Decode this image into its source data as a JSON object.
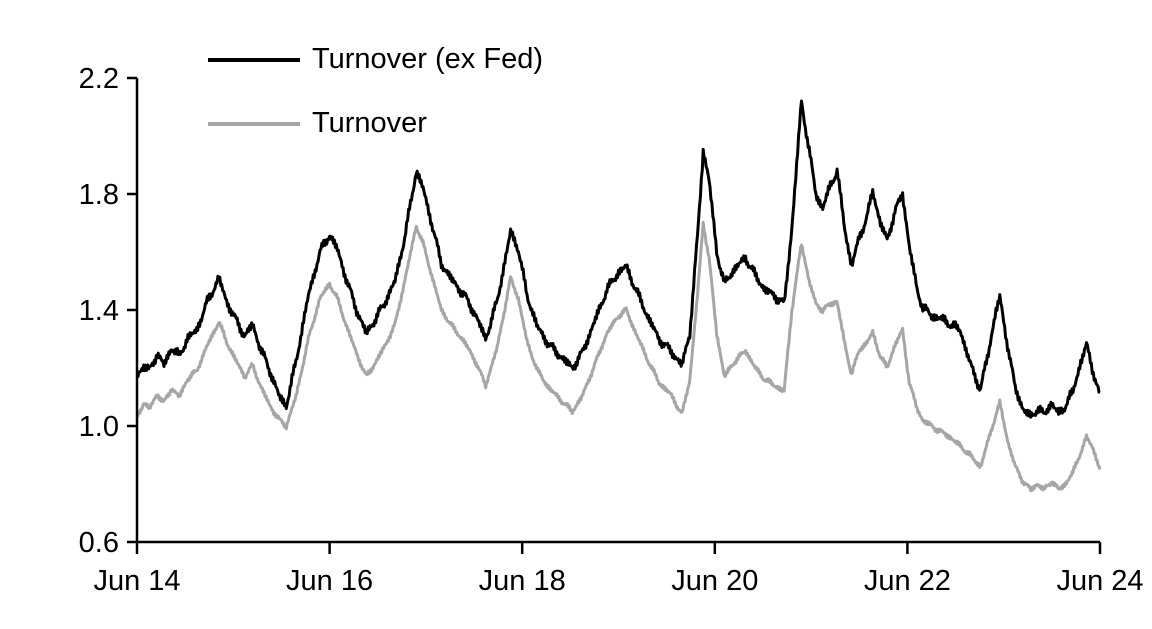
{
  "chart_data": {
    "type": "line",
    "title": "",
    "xlabel": "",
    "ylabel": "",
    "grid": false,
    "background": "#ffffff",
    "axis_color": "#000000",
    "legend": {
      "position": "top-left"
    },
    "x_axis": {
      "tick_labels": [
        "Jun 14",
        "Jun 16",
        "Jun 18",
        "Jun 20",
        "Jun 22",
        "Jun 24"
      ],
      "tick_positions_years": [
        0,
        2,
        4,
        6,
        8,
        10
      ],
      "range_years": [
        0,
        10
      ]
    },
    "y_axis": {
      "ticks": [
        0.6,
        1.0,
        1.4,
        1.8,
        2.2
      ],
      "range": [
        0.6,
        2.2
      ],
      "decimals": 1
    },
    "series": [
      {
        "name": "Turnover (ex Fed)",
        "color": "#000000",
        "line_width": 3,
        "noise_hint": 0.021,
        "points": [
          [
            0.0,
            1.17
          ],
          [
            0.07,
            1.21
          ],
          [
            0.13,
            1.19
          ],
          [
            0.21,
            1.25
          ],
          [
            0.28,
            1.21
          ],
          [
            0.36,
            1.27
          ],
          [
            0.44,
            1.24
          ],
          [
            0.52,
            1.3
          ],
          [
            0.62,
            1.33
          ],
          [
            0.72,
            1.42
          ],
          [
            0.85,
            1.51
          ],
          [
            0.93,
            1.43
          ],
          [
            1.02,
            1.37
          ],
          [
            1.12,
            1.31
          ],
          [
            1.2,
            1.35
          ],
          [
            1.28,
            1.27
          ],
          [
            1.38,
            1.19
          ],
          [
            1.48,
            1.1
          ],
          [
            1.55,
            1.07
          ],
          [
            1.65,
            1.22
          ],
          [
            1.78,
            1.45
          ],
          [
            1.9,
            1.6
          ],
          [
            2.0,
            1.66
          ],
          [
            2.08,
            1.61
          ],
          [
            2.17,
            1.51
          ],
          [
            2.28,
            1.4
          ],
          [
            2.38,
            1.32
          ],
          [
            2.48,
            1.37
          ],
          [
            2.58,
            1.43
          ],
          [
            2.68,
            1.5
          ],
          [
            2.78,
            1.65
          ],
          [
            2.9,
            1.88
          ],
          [
            2.97,
            1.82
          ],
          [
            3.06,
            1.7
          ],
          [
            3.16,
            1.56
          ],
          [
            3.28,
            1.5
          ],
          [
            3.4,
            1.45
          ],
          [
            3.52,
            1.38
          ],
          [
            3.62,
            1.3
          ],
          [
            3.74,
            1.43
          ],
          [
            3.88,
            1.67
          ],
          [
            3.96,
            1.61
          ],
          [
            4.05,
            1.45
          ],
          [
            4.16,
            1.34
          ],
          [
            4.28,
            1.28
          ],
          [
            4.4,
            1.24
          ],
          [
            4.52,
            1.2
          ],
          [
            4.62,
            1.25
          ],
          [
            4.74,
            1.35
          ],
          [
            4.88,
            1.47
          ],
          [
            5.0,
            1.53
          ],
          [
            5.08,
            1.55
          ],
          [
            5.18,
            1.47
          ],
          [
            5.3,
            1.38
          ],
          [
            5.42,
            1.3
          ],
          [
            5.54,
            1.26
          ],
          [
            5.66,
            1.21
          ],
          [
            5.74,
            1.32
          ],
          [
            5.82,
            1.65
          ],
          [
            5.88,
            1.95
          ],
          [
            5.94,
            1.85
          ],
          [
            6.02,
            1.6
          ],
          [
            6.1,
            1.49
          ],
          [
            6.2,
            1.54
          ],
          [
            6.32,
            1.58
          ],
          [
            6.42,
            1.52
          ],
          [
            6.52,
            1.47
          ],
          [
            6.62,
            1.45
          ],
          [
            6.72,
            1.42
          ],
          [
            6.8,
            1.68
          ],
          [
            6.9,
            2.12
          ],
          [
            6.98,
            1.95
          ],
          [
            7.05,
            1.8
          ],
          [
            7.12,
            1.75
          ],
          [
            7.2,
            1.83
          ],
          [
            7.27,
            1.88
          ],
          [
            7.35,
            1.68
          ],
          [
            7.42,
            1.55
          ],
          [
            7.5,
            1.65
          ],
          [
            7.58,
            1.72
          ],
          [
            7.64,
            1.81
          ],
          [
            7.72,
            1.7
          ],
          [
            7.79,
            1.64
          ],
          [
            7.87,
            1.74
          ],
          [
            7.95,
            1.8
          ],
          [
            8.02,
            1.62
          ],
          [
            8.1,
            1.47
          ],
          [
            8.16,
            1.41
          ],
          [
            8.25,
            1.38
          ],
          [
            8.35,
            1.37
          ],
          [
            8.45,
            1.35
          ],
          [
            8.55,
            1.33
          ],
          [
            8.62,
            1.25
          ],
          [
            8.7,
            1.17
          ],
          [
            8.76,
            1.13
          ],
          [
            8.84,
            1.25
          ],
          [
            8.92,
            1.4
          ],
          [
            8.96,
            1.44
          ],
          [
            9.04,
            1.28
          ],
          [
            9.12,
            1.13
          ],
          [
            9.2,
            1.06
          ],
          [
            9.28,
            1.03
          ],
          [
            9.35,
            1.06
          ],
          [
            9.42,
            1.04
          ],
          [
            9.5,
            1.08
          ],
          [
            9.57,
            1.04
          ],
          [
            9.64,
            1.07
          ],
          [
            9.72,
            1.12
          ],
          [
            9.8,
            1.22
          ],
          [
            9.86,
            1.28
          ],
          [
            9.92,
            1.2
          ],
          [
            10.0,
            1.1
          ]
        ]
      },
      {
        "name": "Turnover",
        "color": "#a6a6a6",
        "line_width": 3,
        "noise_hint": 0.012,
        "points": [
          [
            0.0,
            1.03
          ],
          [
            0.07,
            1.08
          ],
          [
            0.13,
            1.06
          ],
          [
            0.21,
            1.11
          ],
          [
            0.28,
            1.08
          ],
          [
            0.36,
            1.13
          ],
          [
            0.44,
            1.1
          ],
          [
            0.52,
            1.16
          ],
          [
            0.62,
            1.19
          ],
          [
            0.72,
            1.27
          ],
          [
            0.85,
            1.36
          ],
          [
            0.93,
            1.29
          ],
          [
            1.02,
            1.23
          ],
          [
            1.12,
            1.17
          ],
          [
            1.2,
            1.21
          ],
          [
            1.28,
            1.14
          ],
          [
            1.38,
            1.07
          ],
          [
            1.48,
            1.02
          ],
          [
            1.55,
            1.0
          ],
          [
            1.65,
            1.1
          ],
          [
            1.78,
            1.3
          ],
          [
            1.9,
            1.44
          ],
          [
            2.0,
            1.49
          ],
          [
            2.08,
            1.44
          ],
          [
            2.17,
            1.35
          ],
          [
            2.28,
            1.25
          ],
          [
            2.38,
            1.17
          ],
          [
            2.48,
            1.22
          ],
          [
            2.58,
            1.28
          ],
          [
            2.68,
            1.35
          ],
          [
            2.78,
            1.5
          ],
          [
            2.9,
            1.69
          ],
          [
            2.97,
            1.63
          ],
          [
            3.06,
            1.52
          ],
          [
            3.16,
            1.4
          ],
          [
            3.28,
            1.34
          ],
          [
            3.4,
            1.29
          ],
          [
            3.52,
            1.22
          ],
          [
            3.62,
            1.14
          ],
          [
            3.74,
            1.27
          ],
          [
            3.88,
            1.51
          ],
          [
            3.96,
            1.44
          ],
          [
            4.05,
            1.29
          ],
          [
            4.16,
            1.19
          ],
          [
            4.28,
            1.13
          ],
          [
            4.4,
            1.09
          ],
          [
            4.52,
            1.05
          ],
          [
            4.62,
            1.1
          ],
          [
            4.74,
            1.2
          ],
          [
            4.88,
            1.32
          ],
          [
            5.0,
            1.38
          ],
          [
            5.08,
            1.4
          ],
          [
            5.18,
            1.32
          ],
          [
            5.3,
            1.23
          ],
          [
            5.42,
            1.15
          ],
          [
            5.54,
            1.11
          ],
          [
            5.66,
            1.04
          ],
          [
            5.74,
            1.16
          ],
          [
            5.82,
            1.45
          ],
          [
            5.88,
            1.7
          ],
          [
            5.94,
            1.58
          ],
          [
            6.02,
            1.32
          ],
          [
            6.1,
            1.17
          ],
          [
            6.2,
            1.22
          ],
          [
            6.32,
            1.26
          ],
          [
            6.42,
            1.2
          ],
          [
            6.52,
            1.16
          ],
          [
            6.62,
            1.14
          ],
          [
            6.72,
            1.12
          ],
          [
            6.8,
            1.4
          ],
          [
            6.9,
            1.63
          ],
          [
            6.98,
            1.5
          ],
          [
            7.05,
            1.42
          ],
          [
            7.12,
            1.4
          ],
          [
            7.2,
            1.42
          ],
          [
            7.27,
            1.43
          ],
          [
            7.35,
            1.28
          ],
          [
            7.42,
            1.18
          ],
          [
            7.5,
            1.26
          ],
          [
            7.58,
            1.29
          ],
          [
            7.64,
            1.32
          ],
          [
            7.72,
            1.24
          ],
          [
            7.79,
            1.2
          ],
          [
            7.87,
            1.28
          ],
          [
            7.95,
            1.33
          ],
          [
            8.02,
            1.15
          ],
          [
            8.1,
            1.06
          ],
          [
            8.16,
            1.02
          ],
          [
            8.25,
            1.0
          ],
          [
            8.35,
            0.98
          ],
          [
            8.45,
            0.96
          ],
          [
            8.55,
            0.93
          ],
          [
            8.62,
            0.91
          ],
          [
            8.7,
            0.88
          ],
          [
            8.76,
            0.86
          ],
          [
            8.84,
            0.95
          ],
          [
            8.92,
            1.04
          ],
          [
            8.96,
            1.08
          ],
          [
            9.04,
            0.95
          ],
          [
            9.12,
            0.86
          ],
          [
            9.2,
            0.81
          ],
          [
            9.28,
            0.78
          ],
          [
            9.35,
            0.8
          ],
          [
            9.42,
            0.78
          ],
          [
            9.5,
            0.81
          ],
          [
            9.57,
            0.78
          ],
          [
            9.64,
            0.8
          ],
          [
            9.72,
            0.84
          ],
          [
            9.8,
            0.91
          ],
          [
            9.86,
            0.96
          ],
          [
            9.92,
            0.93
          ],
          [
            10.0,
            0.85
          ]
        ]
      }
    ]
  }
}
